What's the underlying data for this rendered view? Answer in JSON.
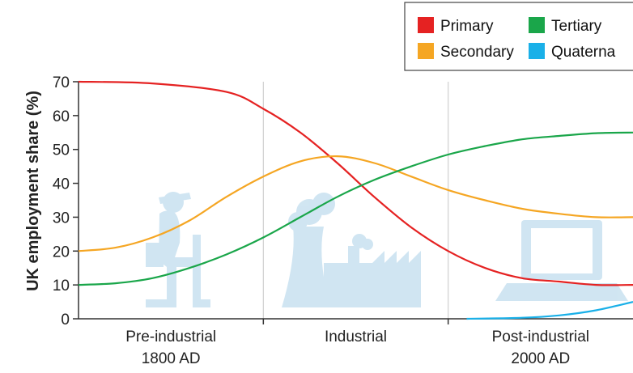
{
  "chart_data": {
    "type": "line",
    "ylabel": "UK employment share (%)",
    "ylim": [
      0,
      70
    ],
    "yticks": [
      0,
      10,
      20,
      30,
      40,
      50,
      60,
      70
    ],
    "xlim": [
      0,
      3
    ],
    "categories": [
      {
        "line1": "Pre-industrial",
        "line2": "1800 AD"
      },
      {
        "line1": "Industrial",
        "line2": ""
      },
      {
        "line1": "Post-industrial",
        "line2": "2000 AD"
      }
    ],
    "grid": "vertical",
    "legend_position": "top-right",
    "series": [
      {
        "name": "Primary",
        "color": "#e52222",
        "x": [
          0,
          0.4,
          0.8,
          1.0,
          1.2,
          1.4,
          1.6,
          1.8,
          2.0,
          2.2,
          2.4,
          2.6,
          2.8,
          3.0
        ],
        "y": [
          70,
          69.5,
          67,
          62,
          55,
          46,
          36,
          27,
          20,
          15,
          12,
          11,
          10,
          10
        ]
      },
      {
        "name": "Secondary",
        "color": "#f5a623",
        "x": [
          0,
          0.2,
          0.4,
          0.6,
          0.8,
          1.0,
          1.2,
          1.4,
          1.6,
          1.8,
          2.0,
          2.2,
          2.4,
          2.6,
          2.8,
          3.0
        ],
        "y": [
          20,
          21,
          24,
          29,
          36,
          42,
          46.5,
          48,
          46,
          42,
          38,
          35,
          32.5,
          31,
          30,
          30
        ]
      },
      {
        "name": "Tertiary",
        "color": "#1aa64a",
        "x": [
          0,
          0.2,
          0.4,
          0.6,
          0.8,
          1.0,
          1.2,
          1.4,
          1.6,
          1.8,
          2.0,
          2.2,
          2.4,
          2.6,
          2.8,
          3.0
        ],
        "y": [
          10,
          10.5,
          12,
          15,
          19,
          24,
          30,
          36,
          41,
          45,
          48.5,
          51,
          53,
          54,
          54.8,
          55
        ]
      },
      {
        "name": "Quaternary",
        "color": "#1ab0e8",
        "x": [
          2.1,
          2.4,
          2.6,
          2.8,
          3.0
        ],
        "y": [
          0,
          0.3,
          1,
          2.5,
          5
        ]
      }
    ]
  },
  "legend": {
    "items": [
      {
        "label": "Primary",
        "color": "#e52222"
      },
      {
        "label": "Tertiary",
        "color": "#1aa64a"
      },
      {
        "label": "Secondary",
        "color": "#f5a623"
      },
      {
        "label": "Quaterna",
        "color": "#1ab0e8"
      }
    ]
  },
  "watermark_color": "#cce3f1"
}
